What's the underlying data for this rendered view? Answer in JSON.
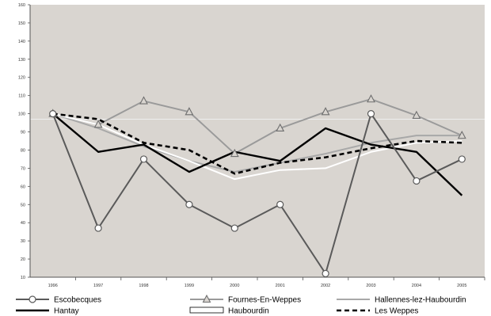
{
  "chart_data": {
    "type": "line",
    "title": "",
    "xlabel": "",
    "ylabel": "",
    "x": [
      "1996",
      "1997",
      "1998",
      "1999",
      "2000",
      "2001",
      "2002",
      "2003",
      "2004",
      "2005"
    ],
    "ylim": [
      10,
      160
    ],
    "yticks": [
      "10",
      "20",
      "30",
      "40",
      "50",
      "60",
      "70",
      "80",
      "90",
      "100",
      "110",
      "120",
      "130",
      "140",
      "150",
      "160"
    ],
    "grid": false,
    "reference_line": 97,
    "plot_background": "#d9d5d0",
    "legend_position": "bottom",
    "series": [
      {
        "name": "Escobecques",
        "values": [
          100,
          37,
          75,
          50,
          37,
          50,
          12,
          100,
          63,
          75
        ],
        "color": "#5a5a5a",
        "marker": "circle",
        "style": "solid"
      },
      {
        "name": "Fournes-En-Weppes",
        "values": [
          100,
          94,
          107,
          101,
          78,
          92,
          101,
          108,
          99,
          88
        ],
        "color": "#9a9a9a",
        "marker": "triangle",
        "style": "solid"
      },
      {
        "name": "Hallennes-lez-Haubourdin",
        "values": [
          100,
          92,
          82,
          74,
          68,
          73,
          78,
          84,
          88,
          88
        ],
        "color": "#a8a8a8",
        "marker": "none",
        "style": "solid"
      },
      {
        "name": "Hantay",
        "values": [
          100,
          79,
          83,
          68,
          79,
          74,
          92,
          83,
          79,
          55
        ],
        "color": "#000000",
        "marker": "none",
        "style": "solid"
      },
      {
        "name": "Haubourdin",
        "values": [
          100,
          94,
          83,
          74,
          64,
          69,
          70,
          79,
          84,
          85
        ],
        "color": "#ffffff",
        "marker": "none",
        "style": "solid"
      },
      {
        "name": "Les Weppes",
        "values": [
          100,
          97,
          84,
          80,
          67,
          73,
          76,
          81,
          85,
          84
        ],
        "color": "#000000",
        "marker": "none",
        "style": "dashed"
      }
    ]
  }
}
